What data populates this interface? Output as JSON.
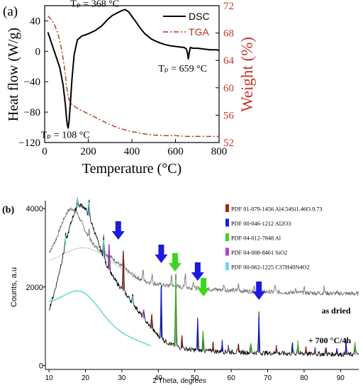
{
  "chart_data": [
    {
      "panel": "(a)",
      "type": "line",
      "xlabel": "Temperature (°C)",
      "ylabel": "Heat flow (W/g)",
      "y2label": "Weight (%)",
      "xlim": [
        0,
        800
      ],
      "ylim": [
        -120,
        60
      ],
      "y2lim": [
        52,
        72
      ],
      "xticks": [
        "0",
        "200",
        "400",
        "600",
        "800"
      ],
      "yticks": [
        "-120",
        "-80",
        "-40",
        "0",
        "40"
      ],
      "y2ticks": [
        "52",
        "56",
        "60",
        "64",
        "68",
        "72"
      ],
      "colors": {
        "dsc": "#000000",
        "tga": "#b5331f",
        "y2axis": "#c0392b"
      },
      "legend_position": "top-right",
      "series": [
        {
          "name": "DSC",
          "axis": "left",
          "style": "solid",
          "x": [
            15,
            30,
            50,
            70,
            85,
            95,
            100,
            104,
            108,
            112,
            118,
            125,
            135,
            150,
            170,
            200,
            230,
            260,
            290,
            310,
            330,
            350,
            368,
            385,
            400,
            420,
            440,
            460,
            490,
            520,
            550,
            580,
            610,
            640,
            650,
            655,
            659,
            663,
            668,
            680,
            700,
            730,
            760,
            790,
            800
          ],
          "y": [
            25,
            12,
            -5,
            -22,
            -45,
            -70,
            -88,
            -97,
            -101,
            -92,
            -68,
            -38,
            -5,
            15,
            20,
            23,
            27,
            33,
            42,
            47,
            50,
            53,
            55,
            52,
            46,
            38,
            30,
            23,
            16,
            12,
            9,
            7,
            6,
            5,
            3,
            -2,
            -10,
            -2,
            5,
            4,
            4,
            3,
            2,
            2,
            1
          ]
        },
        {
          "name": "TGA",
          "axis": "right",
          "style": "dash-dot",
          "x": [
            15,
            30,
            45,
            60,
            75,
            85,
            95,
            100,
            108,
            115,
            125,
            150,
            200,
            250,
            300,
            350,
            400,
            450,
            500,
            550,
            600,
            650,
            700,
            750,
            800
          ],
          "y": [
            70.5,
            70.0,
            69.2,
            68.0,
            66.0,
            64.2,
            62.0,
            60.2,
            58.7,
            58.0,
            57.6,
            57.0,
            56.2,
            55.4,
            54.6,
            54.0,
            53.6,
            53.3,
            53.1,
            53.0,
            53.0,
            52.9,
            52.9,
            52.9,
            52.9
          ]
        }
      ],
      "annotations": [
        {
          "text": "Tₚ = 368 °C",
          "x": 368,
          "y": 55
        },
        {
          "text": "Tₚ = 659 °C",
          "x": 659,
          "y": -10
        },
        {
          "text": "Tₚ = 108 °C",
          "x": 108,
          "y": -101
        }
      ]
    },
    {
      "panel": "(b)",
      "type": "line",
      "xlabel": "2 Theta, degrees",
      "ylabel": "Counts, a.u",
      "xlim": [
        9,
        95
      ],
      "ylim": [
        -100,
        4200
      ],
      "xticks": [
        "10",
        "20",
        "30",
        "40",
        "50",
        "60",
        "70",
        "80",
        "90"
      ],
      "yticks": [
        "0",
        "2000",
        "4000"
      ],
      "legend_position": "top-right",
      "series": [
        {
          "name": "as dried",
          "color": "#777777"
        },
        {
          "name": "+ 700 °C/4h",
          "color": "#000000"
        }
      ],
      "reference_phases": [
        {
          "label": "PDF 01-079-1456 Al4.54Si1.46O.9.73",
          "color": "#a02818"
        },
        {
          "label": "PDF 00-046-1212 Al2O3",
          "color": "#1a1ae0"
        },
        {
          "label": "PDF 04-012-7848 Al",
          "color": "#3cd61e"
        },
        {
          "label": "PDF 04-008-8461 SiO2",
          "color": "#b13ee0"
        },
        {
          "label": "PDF 00-062-1225 C37H40N4O2",
          "color": "#6ad8f5"
        }
      ],
      "arrows": [
        {
          "x": 29.0,
          "color": "#1a1ae0"
        },
        {
          "x": 40.8,
          "color": "#1a1ae0"
        },
        {
          "x": 44.6,
          "color": "#3cd61e"
        },
        {
          "x": 50.8,
          "color": "#1a1ae0"
        },
        {
          "x": 52.4,
          "color": "#3cd61e"
        },
        {
          "x": 67.6,
          "color": "#1a1ae0"
        }
      ],
      "peaks_700": [
        {
          "x": 30.4,
          "h": 1050,
          "phase": 0
        },
        {
          "x": 40.8,
          "h": 1400,
          "phase": 1
        },
        {
          "x": 44.8,
          "h": 1850,
          "phase": 2
        },
        {
          "x": 50.8,
          "h": 820,
          "phase": 1
        },
        {
          "x": 52.3,
          "h": 520,
          "phase": 2
        },
        {
          "x": 67.6,
          "h": 1000,
          "phase": 1
        },
        {
          "x": 38.2,
          "h": 400,
          "phase": 0
        },
        {
          "x": 46.5,
          "h": 350,
          "phase": 0
        },
        {
          "x": 55.0,
          "h": 220,
          "phase": 0
        },
        {
          "x": 57.5,
          "h": 260,
          "phase": 1
        },
        {
          "x": 59.2,
          "h": 160,
          "phase": 3
        },
        {
          "x": 62.0,
          "h": 180,
          "phase": 0
        },
        {
          "x": 65.4,
          "h": 240,
          "phase": 2
        },
        {
          "x": 72.4,
          "h": 220,
          "phase": 0
        },
        {
          "x": 76.8,
          "h": 260,
          "phase": 1
        },
        {
          "x": 78.3,
          "h": 350,
          "phase": 2
        },
        {
          "x": 80.5,
          "h": 200,
          "phase": 0
        },
        {
          "x": 83.0,
          "h": 190,
          "phase": 3
        },
        {
          "x": 86.0,
          "h": 180,
          "phase": 0
        },
        {
          "x": 89.0,
          "h": 160,
          "phase": 1
        },
        {
          "x": 91.5,
          "h": 330,
          "phase": 1
        },
        {
          "x": 94.0,
          "h": 320,
          "phase": 2
        },
        {
          "x": 26.5,
          "h": 700,
          "phase": 3
        },
        {
          "x": 21.0,
          "h": 400,
          "phase": 4
        },
        {
          "x": 25.0,
          "h": 500,
          "phase": 4
        },
        {
          "x": 17.8,
          "h": 300,
          "phase": 4
        },
        {
          "x": 14.5,
          "h": 250,
          "phase": 4
        },
        {
          "x": 33.0,
          "h": 200,
          "phase": 4
        },
        {
          "x": 36.0,
          "h": 250,
          "phase": 3
        }
      ],
      "peaks_dried": [
        {
          "x": 25.0,
          "h": 480
        },
        {
          "x": 30.4,
          "h": 400
        },
        {
          "x": 21.0,
          "h": 250
        },
        {
          "x": 35.8,
          "h": 280
        },
        {
          "x": 38.3,
          "h": 250
        },
        {
          "x": 43.6,
          "h": 280
        },
        {
          "x": 47.4,
          "h": 380
        },
        {
          "x": 49.6,
          "h": 200
        },
        {
          "x": 52.3,
          "h": 180
        },
        {
          "x": 58.0,
          "h": 150
        },
        {
          "x": 62.0,
          "h": 160
        },
        {
          "x": 66.3,
          "h": 140
        },
        {
          "x": 72.0,
          "h": 200
        },
        {
          "x": 77.6,
          "h": 120
        },
        {
          "x": 80.0,
          "h": 130
        },
        {
          "x": 85.5,
          "h": 150
        }
      ]
    }
  ]
}
